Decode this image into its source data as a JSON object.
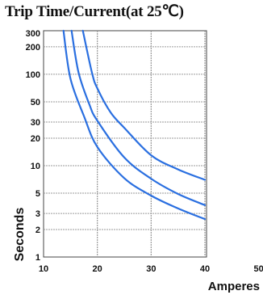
{
  "chart_data": {
    "type": "line",
    "title": "Trip Time/Current(at 25℃)",
    "xlabel": "Amperes",
    "ylabel": "Seconds",
    "x_scale": "linear",
    "y_scale": "log",
    "xlim": [
      10,
      50
    ],
    "ylim": [
      1,
      300
    ],
    "grid": true,
    "x_ticks": [
      10,
      20,
      30,
      40,
      50
    ],
    "y_ticks": [
      1,
      2,
      3,
      5,
      10,
      20,
      30,
      50,
      100,
      200,
      300
    ],
    "colors": {
      "series": "#2a6fe0",
      "grid": "#9a9a9a",
      "frame": "#444444",
      "text": "#111111"
    },
    "series": [
      {
        "x": [
          13.7,
          15,
          17.5,
          20,
          25,
          30,
          35,
          40
        ],
        "y": [
          300,
          90,
          35,
          16,
          7.3,
          4.7,
          3.4,
          2.6
        ]
      },
      {
        "x": [
          15.2,
          16.5,
          18.5,
          20,
          25,
          30,
          35,
          40
        ],
        "y": [
          300,
          105,
          47,
          31,
          12.3,
          7.2,
          4.9,
          3.7
        ]
      },
      {
        "x": [
          17.3,
          19,
          20,
          22.5,
          25,
          30,
          35,
          40
        ],
        "y": [
          300,
          104,
          70,
          38,
          26,
          13,
          9.1,
          7
        ]
      }
    ]
  }
}
